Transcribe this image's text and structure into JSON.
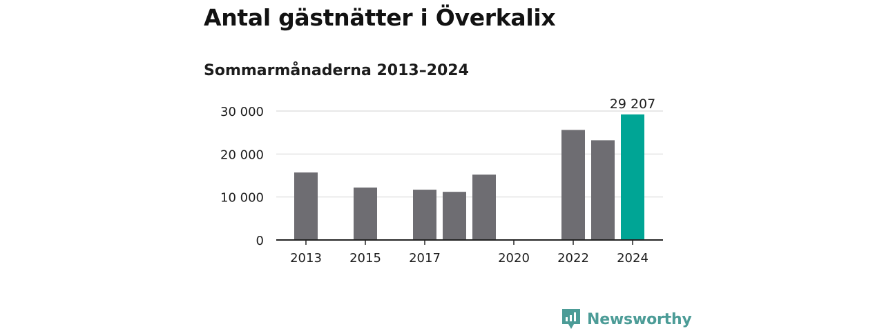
{
  "header": {
    "title": "Antal gästnätter i Överkalix",
    "subtitle": "Sommarmånaderna 2013–2024"
  },
  "brand": {
    "name": "Newsworthy",
    "icon": "newsworthy-logo-icon",
    "color": "#4c9c97"
  },
  "colors": {
    "bar": "#6e6d72",
    "highlight": "#00a595",
    "grid": "#d9d9d9",
    "axis": "#222222",
    "text": "#1c1c1c"
  },
  "chart_data": {
    "type": "bar",
    "categories": [
      "2013",
      "2014",
      "2015",
      "2016",
      "2017",
      "2018",
      "2019",
      "2020",
      "2021",
      "2022",
      "2023",
      "2024"
    ],
    "values": [
      15700,
      null,
      12200,
      null,
      11700,
      11200,
      15200,
      null,
      null,
      25600,
      23200,
      29207
    ],
    "highlight_index": 11,
    "highlight_label": "29 207",
    "ylim": [
      0,
      30000
    ],
    "yticks": [
      0,
      10000,
      20000,
      30000
    ],
    "ytick_labels": [
      "0",
      "10 000",
      "20 000",
      "30 000"
    ],
    "xtick_labels": [
      "2013",
      "",
      "2015",
      "",
      "2017",
      "",
      "",
      "2020",
      "",
      "2022",
      "",
      "2024"
    ],
    "xlabel": "",
    "ylabel": "",
    "grid": true,
    "legend": "none"
  }
}
